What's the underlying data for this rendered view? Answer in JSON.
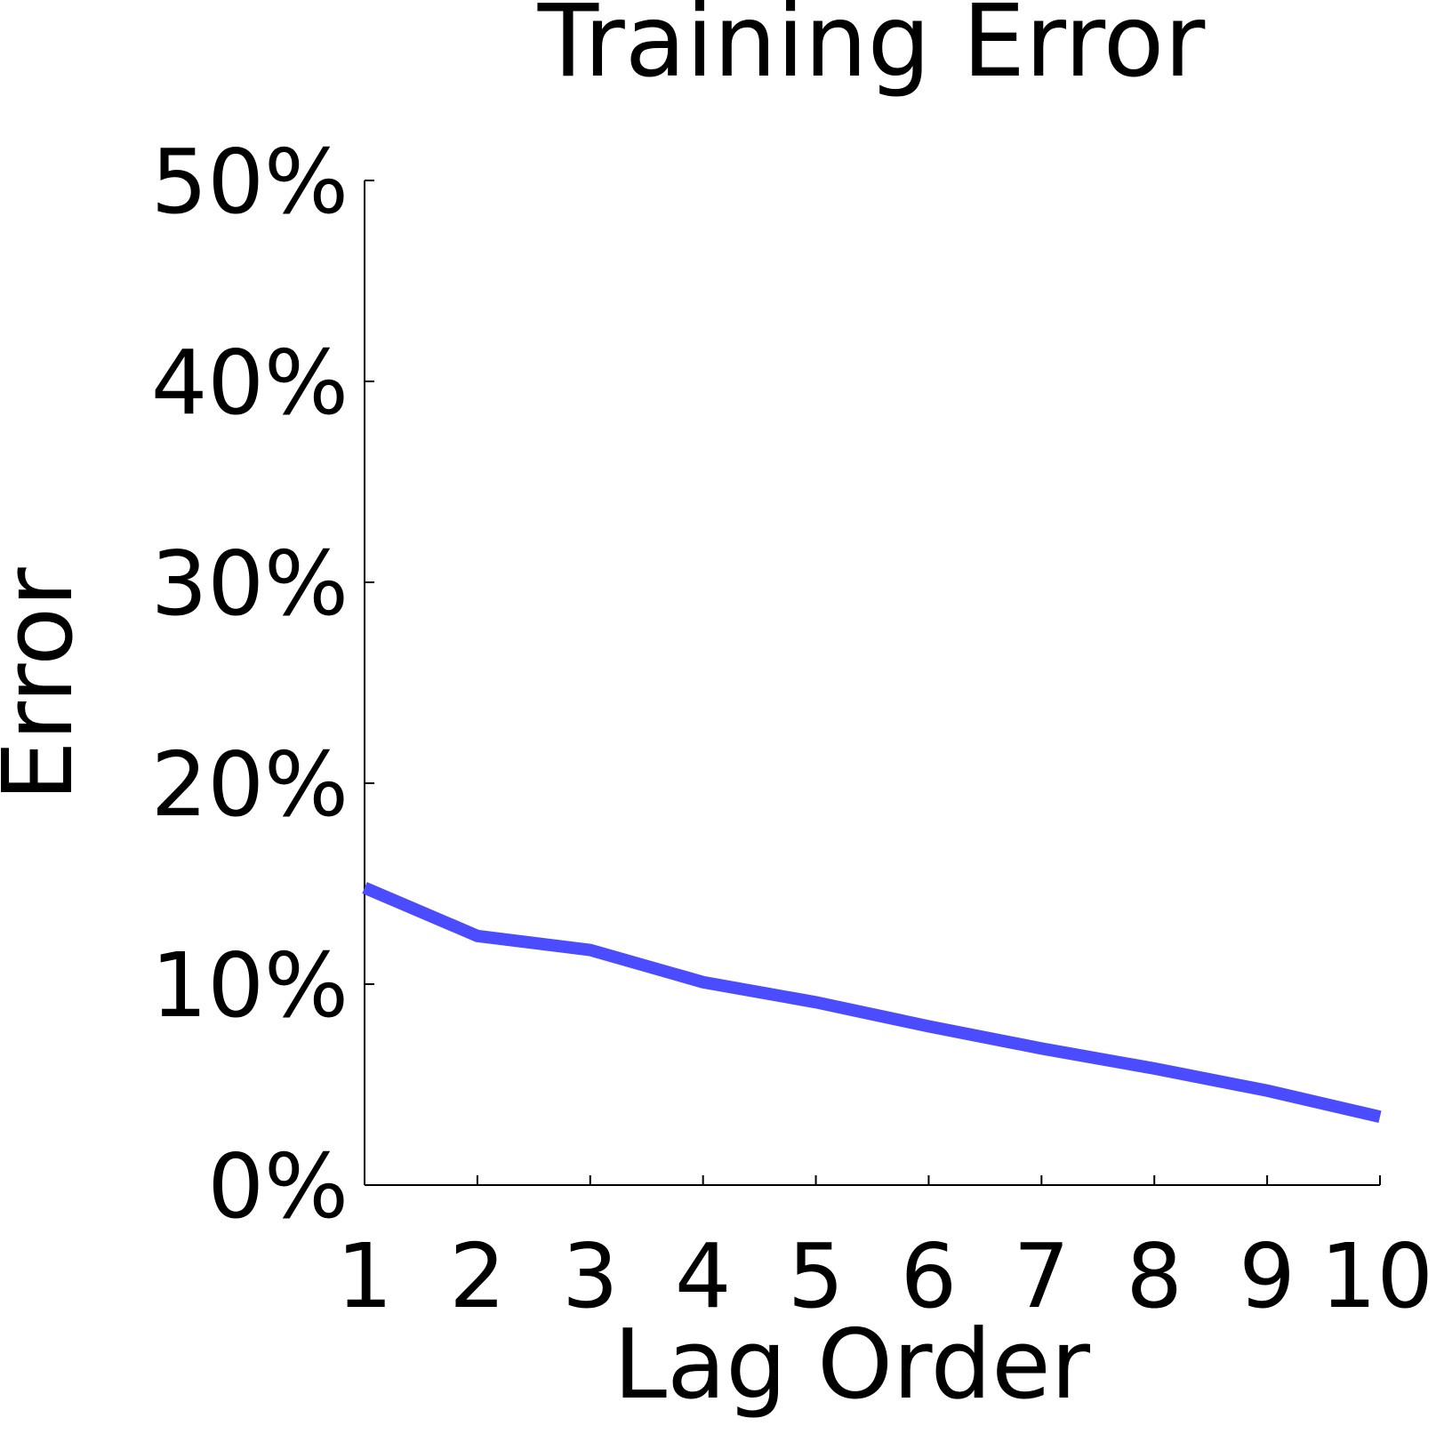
{
  "chart_data": {
    "type": "line",
    "title": "Training Error",
    "xlabel": "Lag Order",
    "ylabel": "Error",
    "x": [
      1,
      2,
      3,
      4,
      5,
      6,
      7,
      8,
      9,
      10
    ],
    "xlim": [
      1,
      10
    ],
    "ylim": [
      0,
      50
    ],
    "x_ticks": [
      "1",
      "2",
      "3",
      "4",
      "5",
      "6",
      "7",
      "8",
      "9",
      "10"
    ],
    "y_ticks": [
      {
        "value": 0,
        "label": "0%"
      },
      {
        "value": 10,
        "label": "10%"
      },
      {
        "value": 20,
        "label": "20%"
      },
      {
        "value": 30,
        "label": "30%"
      },
      {
        "value": 40,
        "label": "40%"
      },
      {
        "value": 50,
        "label": "50%"
      }
    ],
    "grid": false,
    "series": [
      {
        "color": "#4b4bff",
        "values": [
          14.8,
          12.4,
          11.7,
          10.1,
          9.1,
          7.9,
          6.8,
          5.8,
          4.7,
          3.4
        ]
      }
    ]
  }
}
